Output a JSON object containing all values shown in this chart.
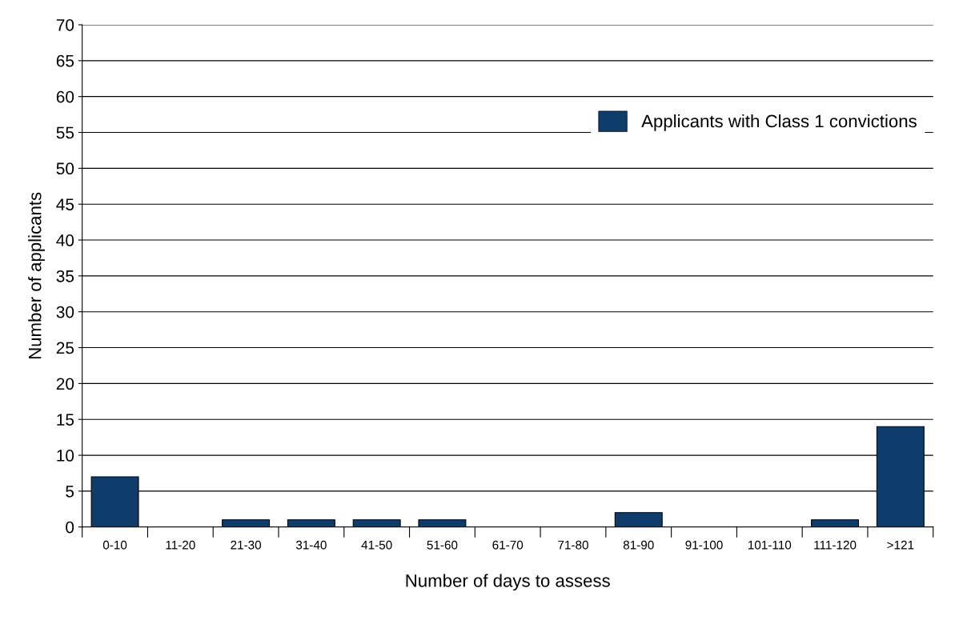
{
  "chart_data": {
    "type": "bar",
    "categories": [
      "0-10",
      "11-20",
      "21-30",
      "31-40",
      "41-50",
      "51-60",
      "61-70",
      "71-80",
      "81-90",
      "91-100",
      "101-110",
      "111-120",
      ">121"
    ],
    "series": [
      {
        "name": "Applicants with Class 1 convictions",
        "color": "#0f3d6b",
        "values": [
          7,
          0,
          1,
          1,
          1,
          1,
          0,
          0,
          2,
          0,
          0,
          1,
          14
        ]
      }
    ],
    "xlabel": "Number of days to assess",
    "ylabel": "Number of applicants",
    "ylim": [
      0,
      70
    ],
    "yticks": [
      0,
      5,
      10,
      15,
      20,
      25,
      30,
      35,
      40,
      45,
      50,
      55,
      60,
      65,
      70
    ],
    "grid": "y",
    "legend": "top right"
  }
}
